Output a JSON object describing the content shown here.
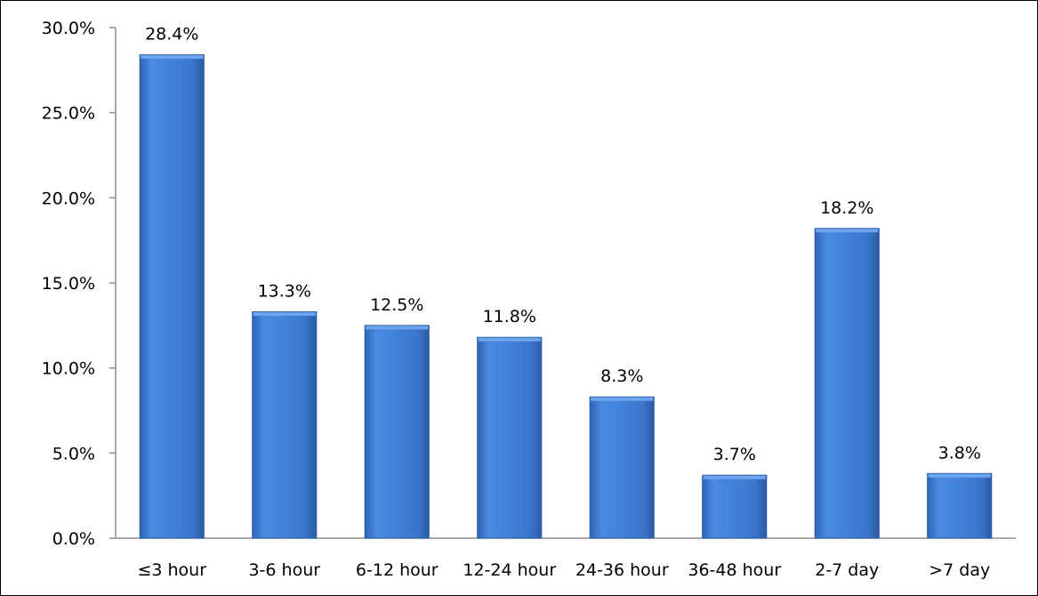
{
  "chart_data": {
    "type": "bar",
    "title": "",
    "xlabel": "",
    "ylabel": "",
    "categories": [
      "≤3 hour",
      "3-6 hour",
      "6-12 hour",
      "12-24 hour",
      "24-36 hour",
      "36-48 hour",
      "2-7 day",
      ">7 day"
    ],
    "values": [
      28.4,
      13.3,
      12.5,
      11.8,
      8.3,
      3.7,
      18.2,
      3.8
    ],
    "data_labels": [
      "28.4%",
      "13.3%",
      "12.5%",
      "11.8%",
      "8.3%",
      "3.7%",
      "18.2%",
      "3.8%"
    ],
    "y_ticks": [
      0,
      5,
      10,
      15,
      20,
      25,
      30
    ],
    "y_tick_labels": [
      "0.0%",
      "5.0%",
      "10.0%",
      "15.0%",
      "20.0%",
      "25.0%",
      "30.0%"
    ],
    "ylim": [
      0,
      30
    ],
    "grid": false,
    "legend": "none",
    "colors": {
      "bar_top": "#4a8ae0",
      "bar_mid": "#3b78cf",
      "bar_edge": "#2a5aa3",
      "bar_cap": "#6ea4ee",
      "axis": "#8c8c8c",
      "text": "#000000"
    }
  }
}
